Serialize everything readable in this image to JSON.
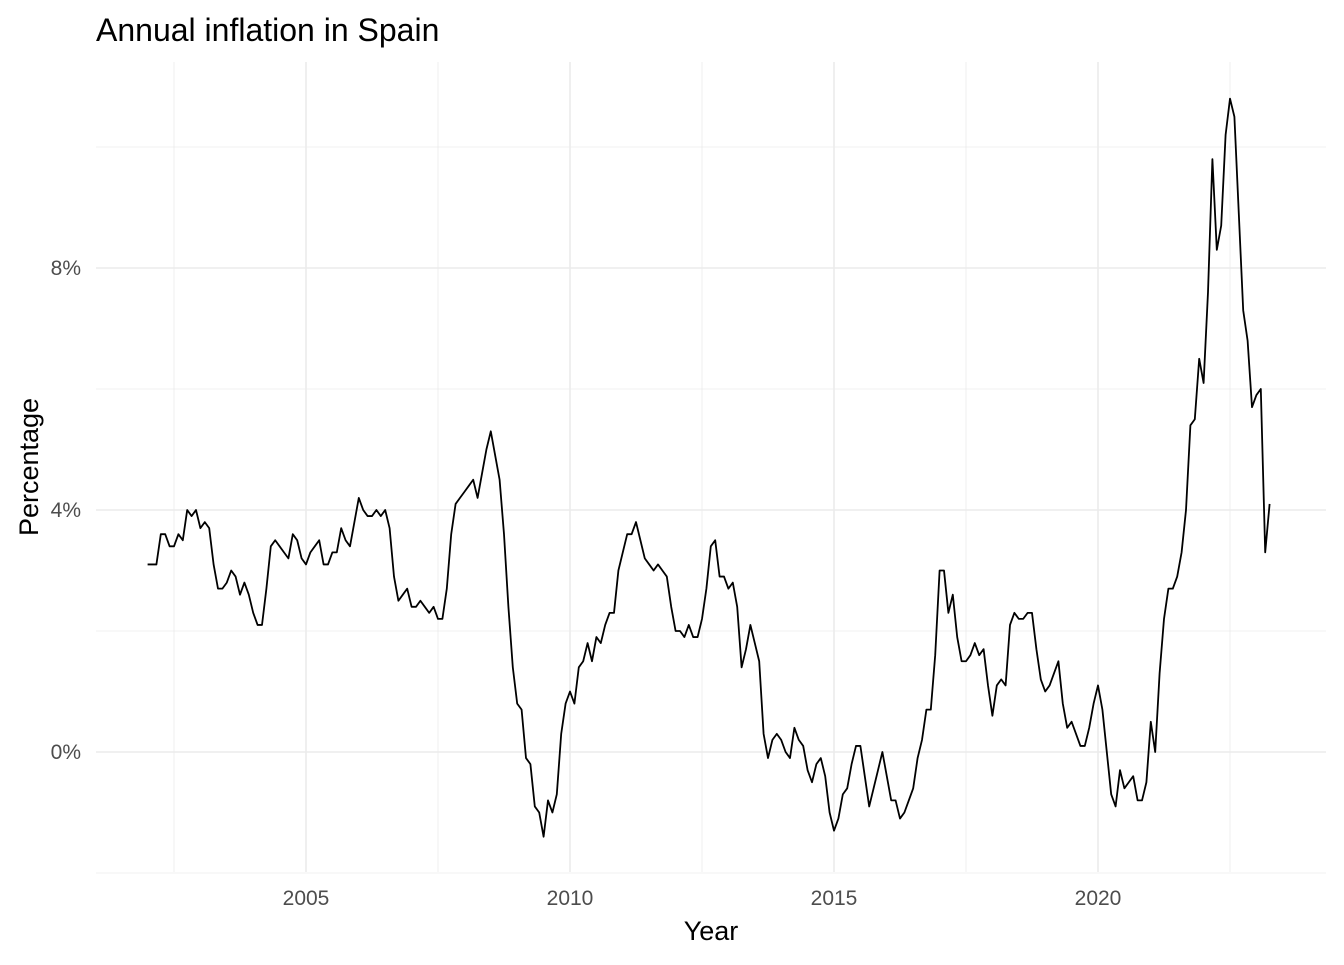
{
  "chart_data": {
    "type": "line",
    "title": "Annual inflation in Spain",
    "xlabel": "Year",
    "ylabel": "Percentage",
    "xlim": [
      2002.0,
      2023.33
    ],
    "ylim": [
      -2.0,
      11.4
    ],
    "x_ticks": [
      {
        "value": 2005,
        "label": "2005"
      },
      {
        "value": 2010,
        "label": "2010"
      },
      {
        "value": 2015,
        "label": "2015"
      },
      {
        "value": 2020,
        "label": "2020"
      }
    ],
    "y_ticks": [
      {
        "value": 0,
        "label": "0%"
      },
      {
        "value": 4,
        "label": "4%"
      },
      {
        "value": 8,
        "label": "8%"
      }
    ],
    "x_minor_grid": [
      2002.5,
      2007.5,
      2012.5,
      2017.5,
      2022.5
    ],
    "y_minor_grid": [
      -2,
      2,
      6,
      10
    ],
    "grid": true,
    "line_color": "#000000",
    "grid_color": "#ebebeb",
    "x_start": 2002.0,
    "x_step": 0.0833333,
    "values": [
      3.1,
      3.1,
      3.1,
      3.6,
      3.6,
      3.4,
      3.4,
      3.6,
      3.5,
      4.0,
      3.9,
      4.0,
      3.7,
      3.8,
      3.7,
      3.1,
      2.7,
      2.7,
      2.8,
      3.0,
      2.9,
      2.6,
      2.8,
      2.6,
      2.3,
      2.1,
      2.1,
      2.7,
      3.4,
      3.5,
      3.4,
      3.3,
      3.2,
      3.6,
      3.5,
      3.2,
      3.1,
      3.3,
      3.4,
      3.5,
      3.1,
      3.1,
      3.3,
      3.3,
      3.7,
      3.5,
      3.4,
      3.8,
      4.2,
      4.0,
      3.9,
      3.9,
      4.0,
      3.9,
      4.0,
      3.7,
      2.9,
      2.5,
      2.6,
      2.7,
      2.4,
      2.4,
      2.5,
      2.4,
      2.3,
      2.4,
      2.2,
      2.2,
      2.7,
      3.6,
      4.1,
      4.2,
      4.3,
      4.4,
      4.5,
      4.2,
      4.6,
      5.0,
      5.3,
      4.9,
      4.5,
      3.6,
      2.4,
      1.4,
      0.8,
      0.7,
      -0.1,
      -0.2,
      -0.9,
      -1.0,
      -1.4,
      -0.8,
      -1.0,
      -0.7,
      0.3,
      0.8,
      1.0,
      0.8,
      1.4,
      1.5,
      1.8,
      1.5,
      1.9,
      1.8,
      2.1,
      2.3,
      2.3,
      3.0,
      3.3,
      3.6,
      3.6,
      3.8,
      3.5,
      3.2,
      3.1,
      3.0,
      3.1,
      3.0,
      2.9,
      2.4,
      2.0,
      2.0,
      1.9,
      2.1,
      1.9,
      1.9,
      2.2,
      2.7,
      3.4,
      3.5,
      2.9,
      2.9,
      2.7,
      2.8,
      2.4,
      1.4,
      1.7,
      2.1,
      1.8,
      1.5,
      0.3,
      -0.1,
      0.2,
      0.3,
      0.2,
      0.0,
      -0.1,
      0.4,
      0.2,
      0.1,
      -0.3,
      -0.5,
      -0.2,
      -0.1,
      -0.4,
      -1.0,
      -1.3,
      -1.1,
      -0.7,
      -0.6,
      -0.2,
      0.1,
      0.1,
      -0.4,
      -0.9,
      -0.6,
      -0.3,
      0.0,
      -0.4,
      -0.8,
      -0.8,
      -1.1,
      -1.0,
      -0.8,
      -0.6,
      -0.1,
      0.2,
      0.7,
      0.7,
      1.6,
      3.0,
      3.0,
      2.3,
      2.6,
      1.9,
      1.5,
      1.5,
      1.6,
      1.8,
      1.6,
      1.7,
      1.1,
      0.6,
      1.1,
      1.2,
      1.1,
      2.1,
      2.3,
      2.2,
      2.2,
      2.3,
      2.3,
      1.7,
      1.2,
      1.0,
      1.1,
      1.3,
      1.5,
      0.8,
      0.4,
      0.5,
      0.3,
      0.1,
      0.1,
      0.4,
      0.8,
      1.1,
      0.7,
      0.0,
      -0.7,
      -0.9,
      -0.3,
      -0.6,
      -0.5,
      -0.4,
      -0.8,
      -0.8,
      -0.5,
      0.5,
      0.0,
      1.3,
      2.2,
      2.7,
      2.7,
      2.9,
      3.3,
      4.0,
      5.4,
      5.5,
      6.5,
      6.1,
      7.6,
      9.8,
      8.3,
      8.7,
      10.2,
      10.8,
      10.5,
      8.9,
      7.3,
      6.8,
      5.7,
      5.9,
      6.0,
      3.3,
      4.1
    ]
  }
}
